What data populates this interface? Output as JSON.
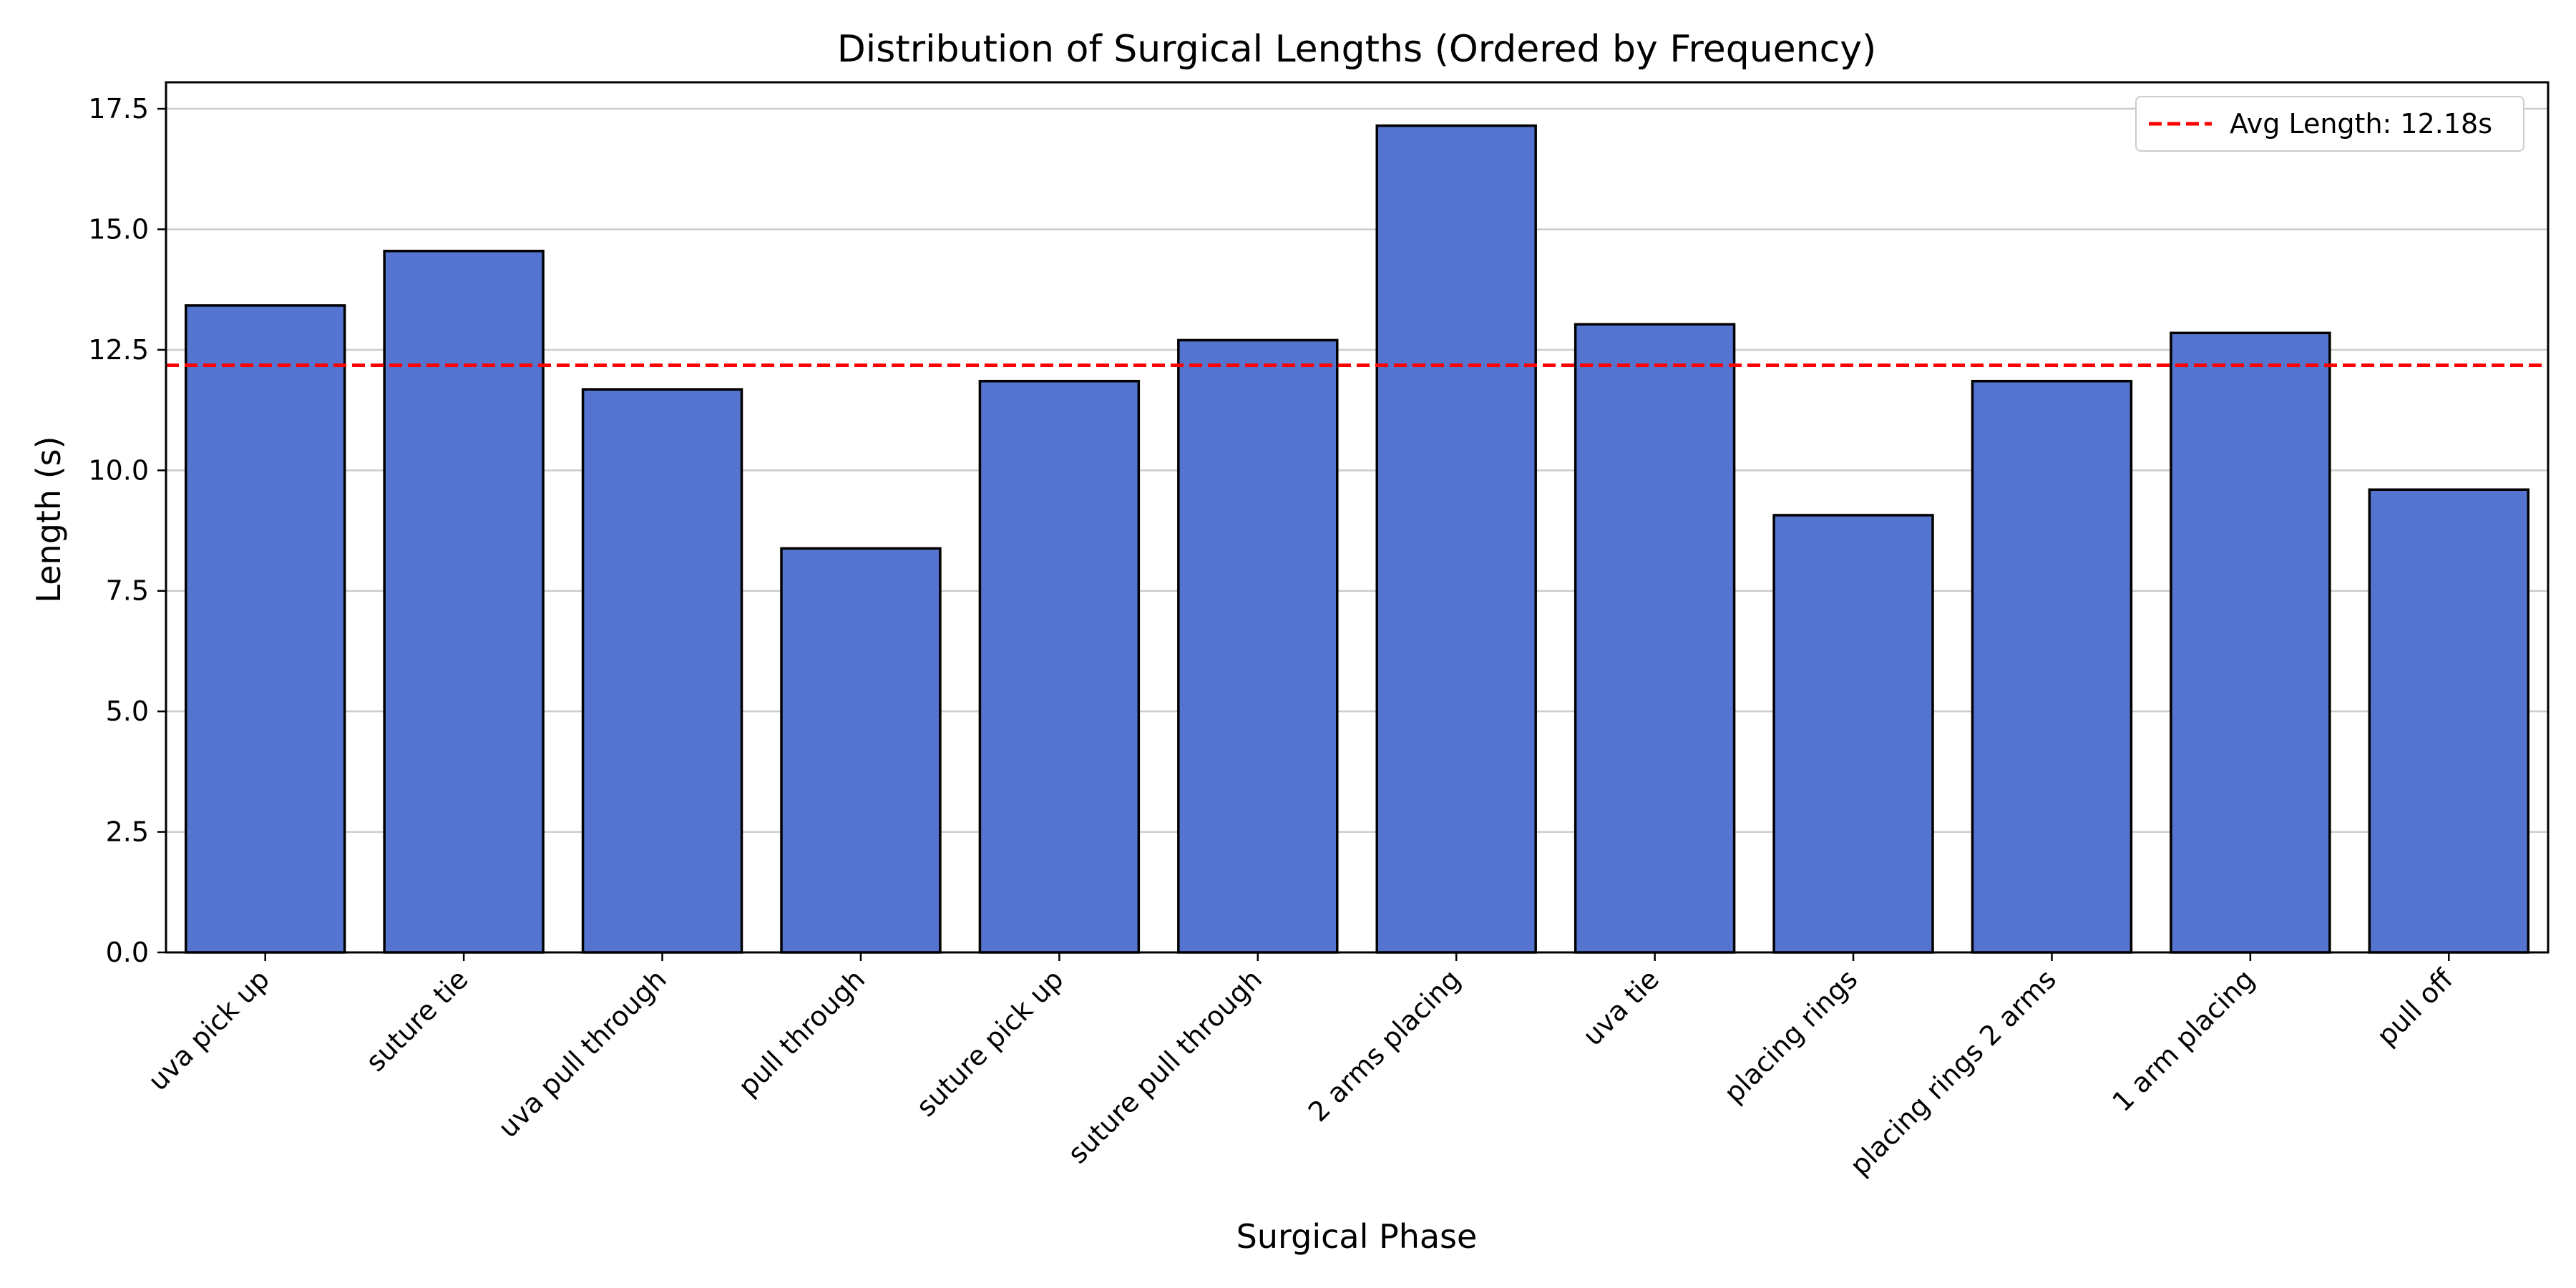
{
  "chart_data": {
    "type": "bar",
    "title": "Distribution of Surgical Lengths (Ordered by Frequency)",
    "xlabel": "Surgical Phase",
    "ylabel": "Length (s)",
    "categories": [
      "uva pick up",
      "suture tie",
      "uva pull through",
      "pull through",
      "suture pick up",
      "suture pull through",
      "2 arms placing",
      "uva tie",
      "placing rings",
      "placing rings 2 arms",
      "1 arm placing",
      "pull off"
    ],
    "values": [
      13.42,
      14.55,
      11.68,
      8.38,
      11.85,
      12.7,
      17.15,
      13.03,
      9.07,
      11.85,
      12.85,
      9.6
    ],
    "ylim": [
      0,
      18.05
    ],
    "yticks": [
      0.0,
      2.5,
      5.0,
      7.5,
      10.0,
      12.5,
      15.0,
      17.5
    ],
    "ytick_labels": [
      "0.0",
      "2.5",
      "5.0",
      "7.5",
      "10.0",
      "12.5",
      "15.0",
      "17.5"
    ],
    "grid": "horizontal",
    "bar_color": "#5574cf",
    "bar_edge_color": "#000000",
    "average_line": {
      "value": 12.18,
      "label": "Avg Length: 12.18s",
      "color": "#ff0000",
      "style": "dashed"
    },
    "legend": {
      "placement": "top-right"
    }
  }
}
